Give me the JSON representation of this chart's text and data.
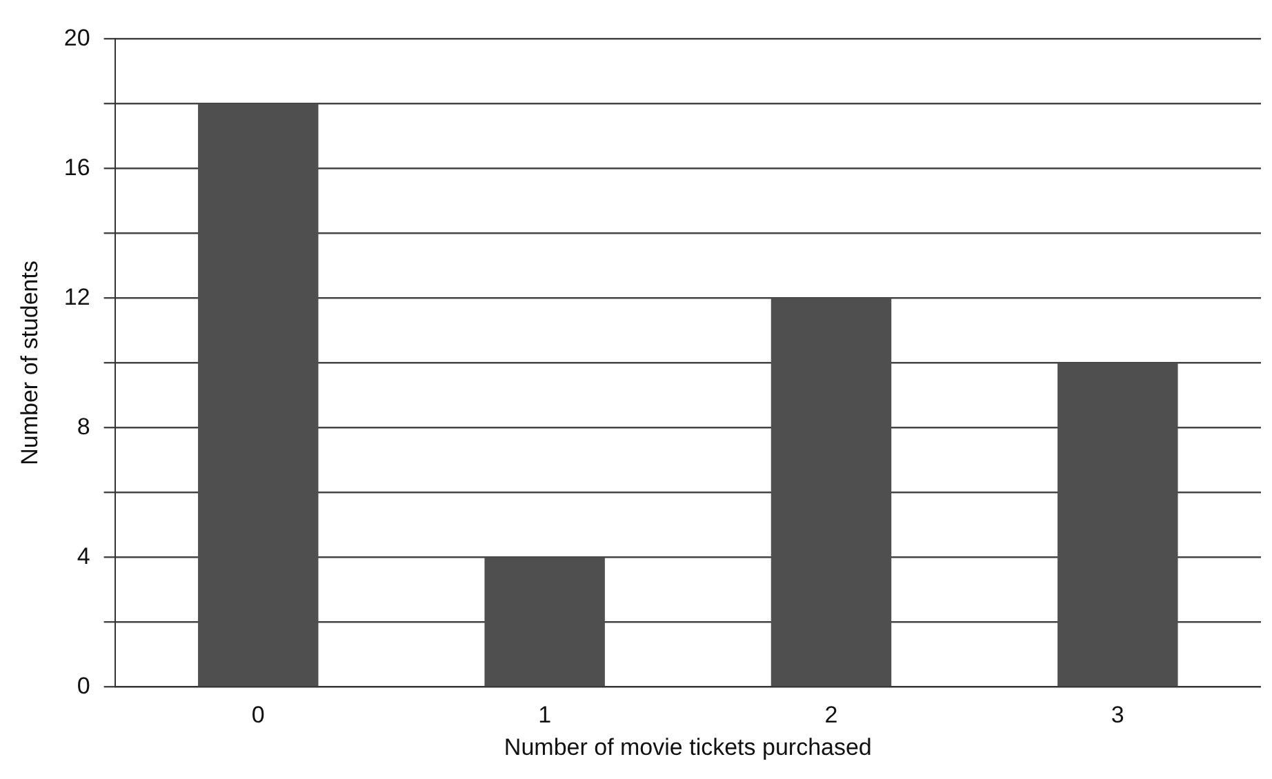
{
  "chart_data": {
    "type": "bar",
    "xlabel": "Number of movie tickets purchased",
    "ylabel": "Number of students",
    "categories": [
      "0",
      "1",
      "2",
      "3"
    ],
    "values": [
      18,
      4,
      12,
      10
    ],
    "color": "#4f4f4f",
    "ylim": [
      0,
      20
    ],
    "yticks": [
      0,
      {
        "value": 2,
        "label": null
      },
      4,
      {
        "value": 6,
        "label": null
      },
      8,
      {
        "value": 10,
        "label": null
      },
      12,
      {
        "value": 14,
        "label": null
      },
      16,
      {
        "value": 18,
        "label": null
      },
      20
    ],
    "grid": "y",
    "legend": false
  }
}
